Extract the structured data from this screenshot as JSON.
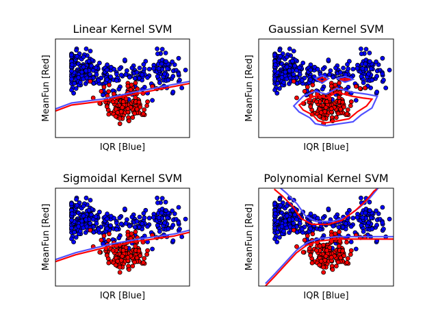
{
  "figure": {
    "background": "#ffffff"
  },
  "colors": {
    "class_blue": "#0000ff",
    "class_red": "#ff0000",
    "point_edge": "#000000",
    "boundary_red": "#ff0000",
    "boundary_blue": "#5050ff"
  },
  "chart_data": [
    {
      "type": "scatter",
      "title": "Linear Kernel SVM",
      "xlabel": "IQR [Blue]",
      "ylabel": "MeanFun [Red]",
      "xlim": [
        0,
        1
      ],
      "ylim": [
        0,
        1
      ],
      "ticks_visible": false,
      "boundary": "linear",
      "boundary_points": [
        [
          0,
          0.28
        ],
        [
          0.12,
          0.34
        ],
        [
          0.35,
          0.38
        ],
        [
          0.62,
          0.46
        ],
        [
          0.85,
          0.52
        ],
        [
          1,
          0.56
        ]
      ]
    },
    {
      "type": "scatter",
      "title": "Gaussian Kernel SVM",
      "xlabel": "IQR [Blue]",
      "ylabel": "MeanFun [Red]",
      "xlim": [
        0,
        1
      ],
      "ylim": [
        0,
        1
      ],
      "ticks_visible": false,
      "boundary": "rbf"
    },
    {
      "type": "scatter",
      "title": "Sigmoidal Kernel SVM",
      "xlabel": "IQR [Blue]",
      "ylabel": "MeanFun [Red]",
      "xlim": [
        0,
        1
      ],
      "ylim": [
        0,
        1
      ],
      "ticks_visible": false,
      "boundary": "sigmoid",
      "boundary_points": [
        [
          0,
          0.26
        ],
        [
          0.15,
          0.33
        ],
        [
          0.42,
          0.42
        ],
        [
          0.62,
          0.47
        ],
        [
          0.88,
          0.52
        ],
        [
          1,
          0.56
        ]
      ]
    },
    {
      "type": "scatter",
      "title": "Polynomial Kernel SVM",
      "xlabel": "IQR [Blue]",
      "ylabel": "MeanFun [Red]",
      "xlim": [
        0,
        1
      ],
      "ylim": [
        0,
        1
      ],
      "ticks_visible": false,
      "boundary": "polynomial"
    }
  ]
}
